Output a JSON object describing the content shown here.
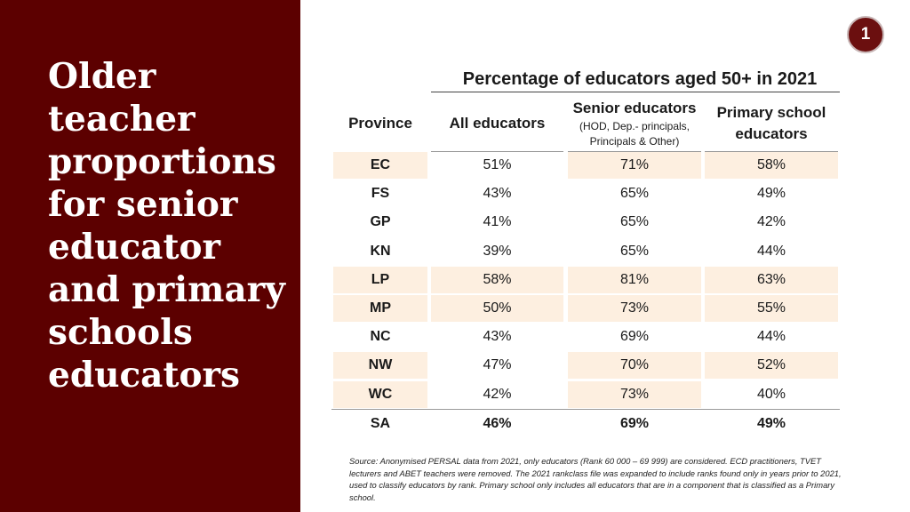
{
  "slide": {
    "title": "Older teacher proportions for senior educator and primary schools educators",
    "page_number": "1"
  },
  "table": {
    "super_header": "Percentage of educators aged 50+ in 2021",
    "columns": {
      "province": "Province",
      "all": "All educators",
      "senior": "Senior educators",
      "senior_sub_1": "(HOD, Dep.- principals,",
      "senior_sub_2": "Principals & Other)",
      "primary_1": "Primary school",
      "primary_2": "educators"
    },
    "rows": [
      {
        "province": "EC",
        "all": "51%",
        "senior": "71%",
        "primary": "58%",
        "highlight": [
          true,
          false,
          true,
          true
        ]
      },
      {
        "province": "FS",
        "all": "43%",
        "senior": "65%",
        "primary": "49%",
        "highlight": [
          false,
          false,
          false,
          false
        ]
      },
      {
        "province": "GP",
        "all": "41%",
        "senior": "65%",
        "primary": "42%",
        "highlight": [
          false,
          false,
          false,
          false
        ]
      },
      {
        "province": "KN",
        "all": "39%",
        "senior": "65%",
        "primary": "44%",
        "highlight": [
          false,
          false,
          false,
          false
        ]
      },
      {
        "province": "LP",
        "all": "58%",
        "senior": "81%",
        "primary": "63%",
        "highlight": [
          true,
          true,
          true,
          true
        ]
      },
      {
        "province": "MP",
        "all": "50%",
        "senior": "73%",
        "primary": "55%",
        "highlight": [
          true,
          true,
          true,
          true
        ]
      },
      {
        "province": "NC",
        "all": "43%",
        "senior": "69%",
        "primary": "44%",
        "highlight": [
          false,
          false,
          false,
          false
        ]
      },
      {
        "province": "NW",
        "all": "47%",
        "senior": "70%",
        "primary": "52%",
        "highlight": [
          true,
          false,
          true,
          true
        ]
      },
      {
        "province": "WC",
        "all": "42%",
        "senior": "73%",
        "primary": "40%",
        "highlight": [
          true,
          false,
          true,
          false
        ]
      }
    ],
    "total": {
      "province": "SA",
      "all": "46%",
      "senior": "69%",
      "primary": "49%"
    }
  },
  "source_note": "Source: Anonymised PERSAL data from 2021, only educators (Rank 60 000 – 69 999) are considered. ECD practitioners, TVET lecturers and ABET teachers were removed. The 2021 rankclass file was expanded to include ranks found only in years prior to 2021, used to classify educators by rank. Primary school only includes all educators that are in a component that is classified as a Primary school.",
  "colors": {
    "left_panel": "#5c0000",
    "highlight_cell": "#fdefe0",
    "badge": "#6b0f0f"
  }
}
